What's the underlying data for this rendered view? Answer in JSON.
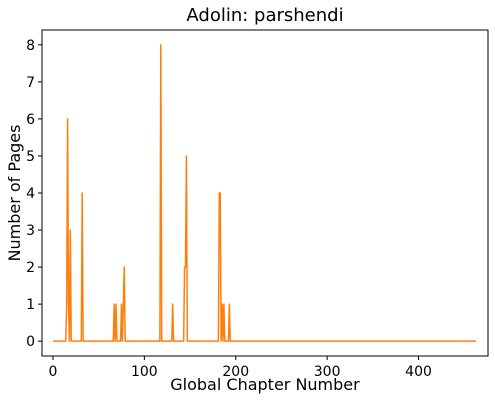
{
  "chart_data": {
    "type": "line",
    "title": "Adolin: parshendi",
    "xlabel": "Global Chapter Number",
    "ylabel": "Number of Pages",
    "xlim": [
      -12,
      476
    ],
    "ylim": [
      -0.4,
      8.4
    ],
    "xticks": [
      0,
      100,
      200,
      300,
      400
    ],
    "yticks": [
      0,
      1,
      2,
      3,
      4,
      5,
      6,
      7,
      8
    ],
    "grid": false,
    "legend": "none",
    "series": [
      {
        "color": "#ff7f0e",
        "points": [
          [
            0,
            0
          ],
          [
            14,
            0
          ],
          [
            15,
            1
          ],
          [
            16,
            6
          ],
          [
            17,
            1
          ],
          [
            18,
            0
          ],
          [
            19,
            3
          ],
          [
            20,
            0
          ],
          [
            31,
            0
          ],
          [
            32,
            4
          ],
          [
            33,
            0
          ],
          [
            66,
            0
          ],
          [
            67,
            1
          ],
          [
            68,
            0
          ],
          [
            69,
            1
          ],
          [
            70,
            0
          ],
          [
            74,
            0
          ],
          [
            75,
            1
          ],
          [
            76,
            0
          ],
          [
            77,
            1
          ],
          [
            78,
            2
          ],
          [
            79,
            0
          ],
          [
            117,
            0
          ],
          [
            118,
            8
          ],
          [
            119,
            0
          ],
          [
            130,
            0
          ],
          [
            131,
            1
          ],
          [
            132,
            0
          ],
          [
            143,
            0
          ],
          [
            144,
            2
          ],
          [
            145,
            2
          ],
          [
            146,
            5
          ],
          [
            147,
            0
          ],
          [
            181,
            0
          ],
          [
            182,
            4
          ],
          [
            183,
            4
          ],
          [
            184,
            0
          ],
          [
            185,
            1
          ],
          [
            186,
            0
          ],
          [
            187,
            1
          ],
          [
            188,
            0
          ],
          [
            192,
            0
          ],
          [
            193,
            1
          ],
          [
            194,
            0
          ],
          [
            463,
            0
          ]
        ]
      }
    ]
  }
}
